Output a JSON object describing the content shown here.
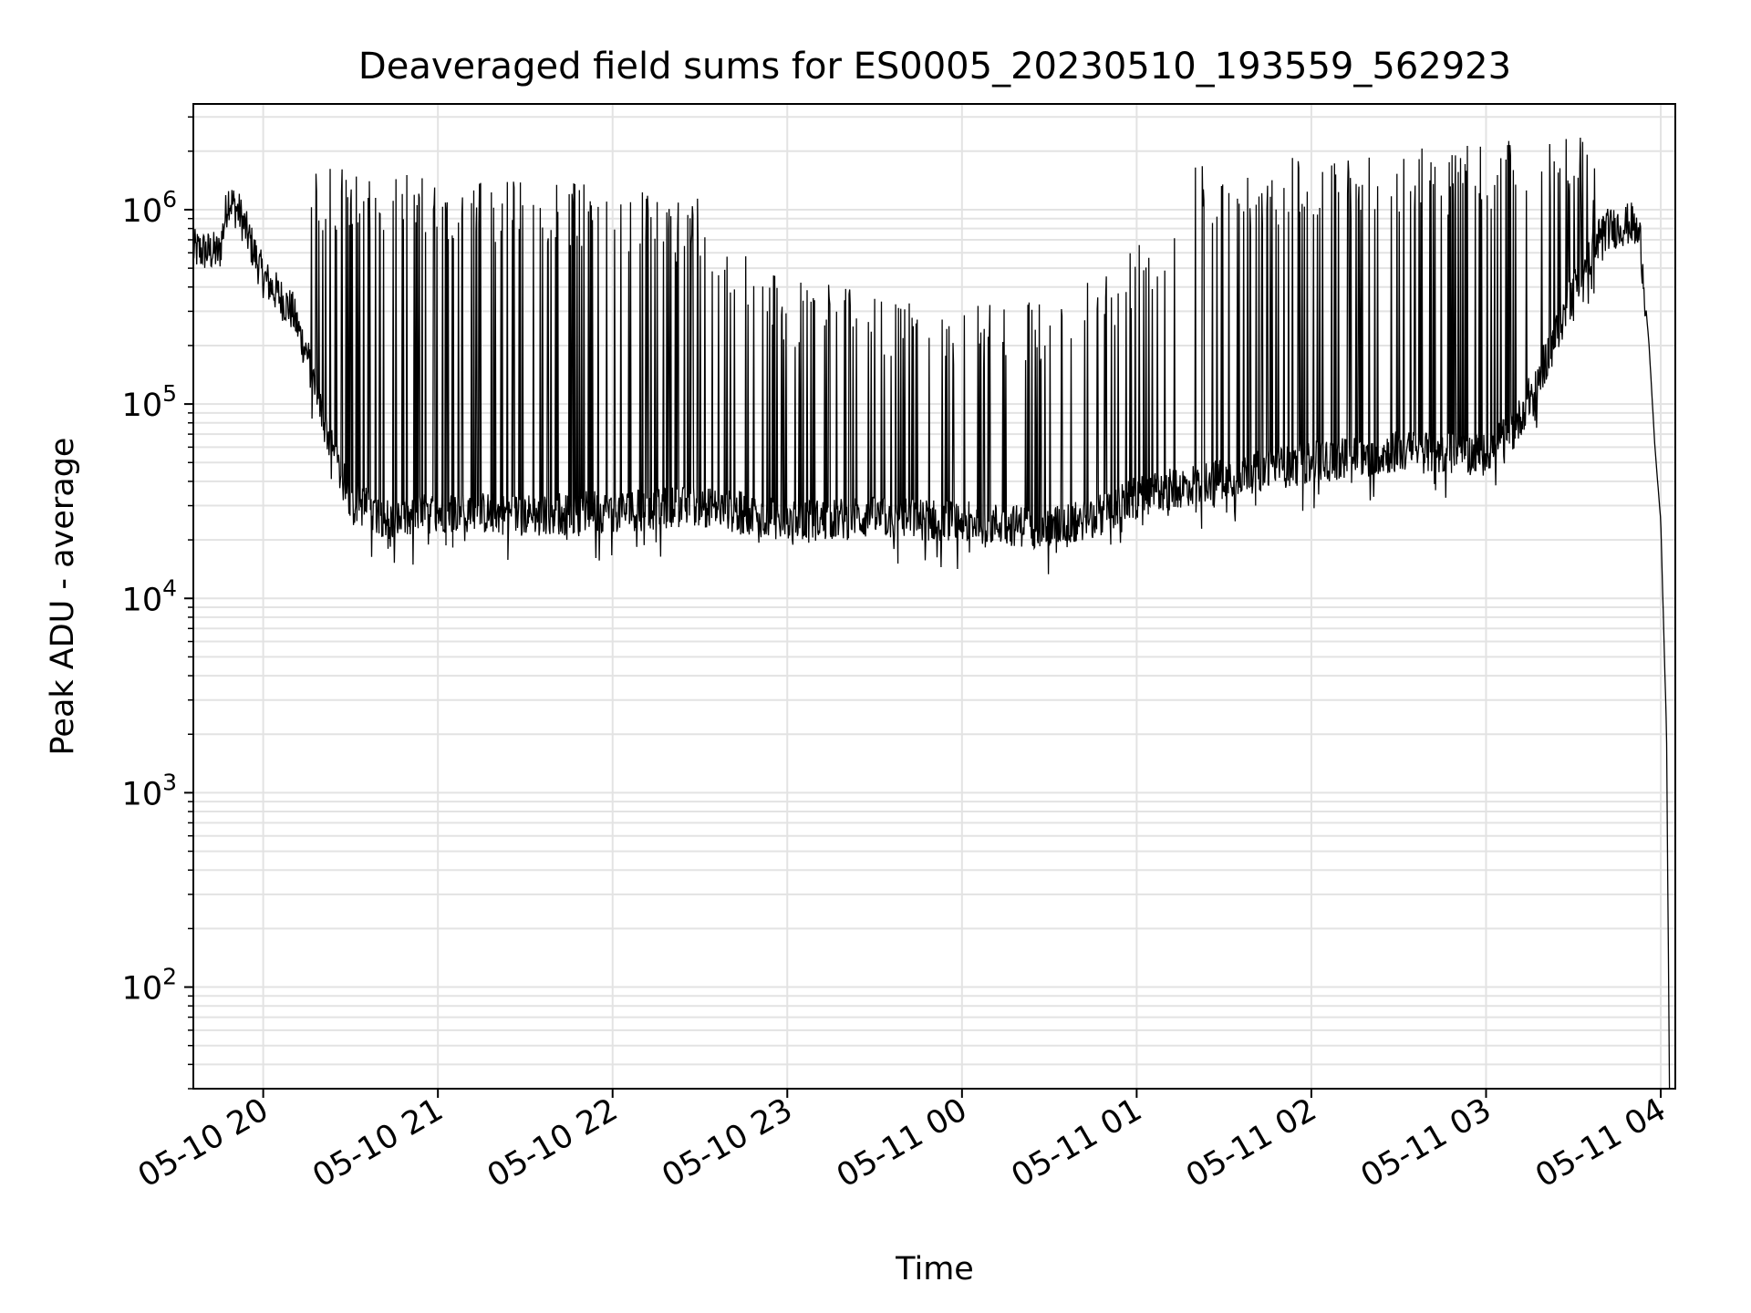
{
  "chart_data": {
    "type": "line",
    "title": "Deaveraged field sums for ES0005_20230510_193559_562923",
    "xlabel": "Time",
    "ylabel": "Peak ADU - average",
    "yscale": "log",
    "ylim": [
      30,
      3500000
    ],
    "xlim": [
      "2023-05-10 19:36",
      "2023-05-11 04:05"
    ],
    "grid": "on (major and minor)",
    "x_ticks": [
      {
        "t": "2023-05-10 20:00",
        "label": "05-10 20"
      },
      {
        "t": "2023-05-10 21:00",
        "label": "05-10 21"
      },
      {
        "t": "2023-05-10 22:00",
        "label": "05-10 22"
      },
      {
        "t": "2023-05-10 23:00",
        "label": "05-10 23"
      },
      {
        "t": "2023-05-11 00:00",
        "label": "05-11 00"
      },
      {
        "t": "2023-05-11 01:00",
        "label": "05-11 01"
      },
      {
        "t": "2023-05-11 02:00",
        "label": "05-11 02"
      },
      {
        "t": "2023-05-11 03:00",
        "label": "05-11 03"
      },
      {
        "t": "2023-05-11 04:00",
        "label": "05-11 04"
      }
    ],
    "y_ticks": [
      {
        "value": 100,
        "base": "10",
        "exp": "2"
      },
      {
        "value": 1000,
        "base": "10",
        "exp": "3"
      },
      {
        "value": 10000,
        "base": "10",
        "exp": "4"
      },
      {
        "value": 100000,
        "base": "10",
        "exp": "5"
      },
      {
        "value": 1000000,
        "base": "10",
        "exp": "6"
      }
    ],
    "series": [
      {
        "color": "#000000",
        "baseline": [
          [
            "2023-05-10 19:36",
            620000
          ],
          [
            "2023-05-10 19:45",
            600000
          ],
          [
            "2023-05-10 19:48",
            1150000
          ],
          [
            "2023-05-10 19:52",
            950000
          ],
          [
            "2023-05-10 20:00",
            450000
          ],
          [
            "2023-05-10 20:10",
            300000
          ],
          [
            "2023-05-10 20:15",
            180000
          ],
          [
            "2023-05-10 20:20",
            90000
          ],
          [
            "2023-05-10 20:25",
            50000
          ],
          [
            "2023-05-10 20:30",
            32000
          ],
          [
            "2023-05-10 20:45",
            25000
          ],
          [
            "2023-05-10 21:00",
            28000
          ],
          [
            "2023-05-10 21:30",
            27000
          ],
          [
            "2023-05-10 22:00",
            28000
          ],
          [
            "2023-05-10 22:30",
            30000
          ],
          [
            "2023-05-10 23:00",
            25000
          ],
          [
            "2023-05-10 23:30",
            26000
          ],
          [
            "2023-05-11 00:00",
            25000
          ],
          [
            "2023-05-11 00:30",
            23000
          ],
          [
            "2023-05-11 00:45",
            26000
          ],
          [
            "2023-05-11 01:00",
            33000
          ],
          [
            "2023-05-11 01:30",
            42000
          ],
          [
            "2023-05-11 02:00",
            50000
          ],
          [
            "2023-05-11 02:30",
            57000
          ],
          [
            "2023-05-11 03:00",
            55000
          ],
          [
            "2023-05-11 03:10",
            75000
          ],
          [
            "2023-05-11 03:20",
            160000
          ],
          [
            "2023-05-11 03:30",
            380000
          ],
          [
            "2023-05-11 03:40",
            780000
          ],
          [
            "2023-05-11 03:50",
            850000
          ],
          [
            "2023-05-11 03:53",
            700000
          ],
          [
            "2023-05-11 03:56",
            200000
          ],
          [
            "2023-05-11 03:58",
            60000
          ],
          [
            "2023-05-11 04:00",
            25000
          ],
          [
            "2023-05-11 04:02",
            2000
          ],
          [
            "2023-05-11 04:03",
            30
          ]
        ],
        "spike_envelope": [
          [
            "2023-05-10 20:15",
            1300000
          ],
          [
            "2023-05-10 21:00",
            1200000
          ],
          [
            "2023-05-10 22:00",
            1100000
          ],
          [
            "2023-05-10 22:30",
            900000
          ],
          [
            "2023-05-10 23:00",
            350000
          ],
          [
            "2023-05-10 23:30",
            300000
          ],
          [
            "2023-05-11 00:00",
            250000
          ],
          [
            "2023-05-11 00:30",
            280000
          ],
          [
            "2023-05-11 01:00",
            500000
          ],
          [
            "2023-05-11 01:20",
            1400000
          ],
          [
            "2023-05-11 02:00",
            1500000
          ],
          [
            "2023-05-11 03:00",
            1700000
          ],
          [
            "2023-05-11 03:30",
            2000000
          ],
          [
            "2023-05-11 03:40",
            1700000
          ]
        ]
      }
    ]
  }
}
